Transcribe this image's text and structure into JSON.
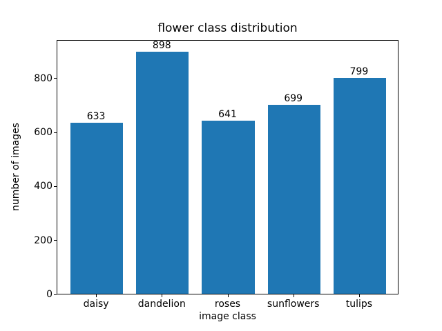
{
  "chart_data": {
    "type": "bar",
    "title": "flower class distribution",
    "xlabel": "image class",
    "ylabel": "number of images",
    "categories": [
      "daisy",
      "dandelion",
      "roses",
      "sunflowers",
      "tulips"
    ],
    "values": [
      633,
      898,
      641,
      699,
      799
    ],
    "bar_value_labels": [
      "633",
      "898",
      "641",
      "699",
      "799"
    ],
    "yticks": [
      0,
      200,
      400,
      600,
      800
    ],
    "ylim": [
      0,
      943
    ],
    "bar_color": "#1f77b4",
    "text_color": "#000000",
    "background_color": "#ffffff",
    "grid": false,
    "legend_position": "none"
  }
}
